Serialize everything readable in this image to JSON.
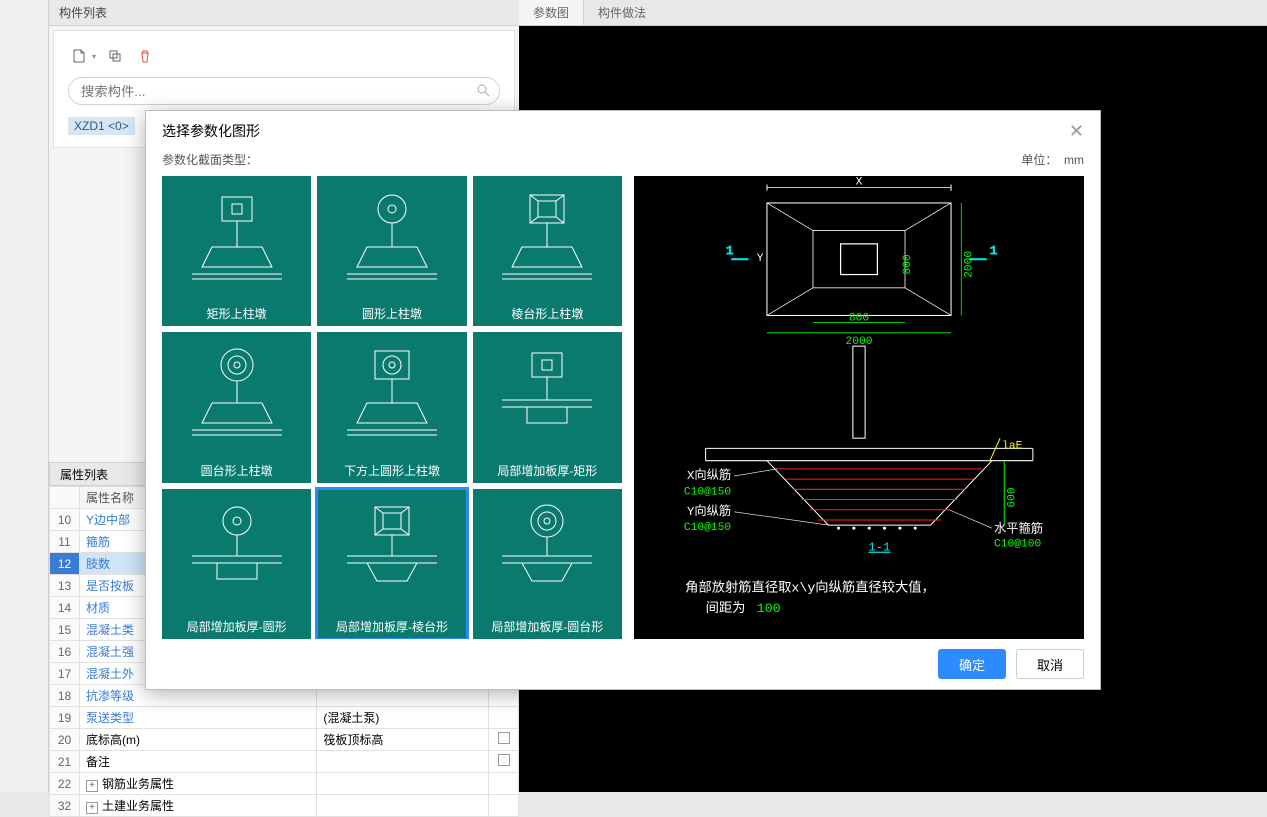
{
  "panels": {
    "component_list_title": "构件列表",
    "property_list_title": "属性列表",
    "param_tab": "参数图",
    "method_tab": "构件做法"
  },
  "search": {
    "placeholder": "搜索构件..."
  },
  "component_tag": "XZD1 <0>",
  "prop_header": {
    "name": "属性名称"
  },
  "prop_rows": [
    {
      "n": "10",
      "name": "Y边中部",
      "link": true
    },
    {
      "n": "11",
      "name": "箍筋",
      "link": true
    },
    {
      "n": "12",
      "name": "肢数",
      "link": true,
      "sel": true
    },
    {
      "n": "13",
      "name": "是否按板",
      "link": true
    },
    {
      "n": "14",
      "name": "材质",
      "link": true
    },
    {
      "n": "15",
      "name": "混凝土类",
      "link": true
    },
    {
      "n": "16",
      "name": "混凝土强",
      "link": true
    },
    {
      "n": "17",
      "name": "混凝土外",
      "link": true
    },
    {
      "n": "18",
      "name": "抗渗等级",
      "link": true
    },
    {
      "n": "19",
      "name": "泵送类型",
      "val": "(混凝土泵)",
      "link": true
    },
    {
      "n": "20",
      "name": "底标高(m)",
      "val": "筏板顶标高",
      "chk": true
    },
    {
      "n": "21",
      "name": "备注",
      "chk": true
    },
    {
      "n": "22",
      "name": "钢筋业务属性",
      "expand": "+"
    },
    {
      "n": "32",
      "name": "土建业务属性",
      "expand": "+"
    }
  ],
  "modal": {
    "title": "选择参数化图形",
    "subtitle": "参数化截面类型：",
    "unit_label": "单位：",
    "unit_value": "mm",
    "confirm": "确定",
    "cancel": "取消",
    "shapes": [
      "矩形上柱墩",
      "圆形上柱墩",
      "棱台形上柱墩",
      "圆台形上柱墩",
      "下方上圆形上柱墩",
      "局部增加板厚-矩形",
      "局部增加板厚-圆形",
      "局部增加板厚-棱台形",
      "局部增加板厚-圆台形"
    ],
    "selected_index": 7
  },
  "diagram": {
    "colors": {
      "bg": "#000000",
      "white": "#ffffff",
      "green": "#00ff00",
      "cyan": "#00e0e0",
      "yellow": "#ffff00",
      "red": "#ff2020",
      "grey": "#808080"
    },
    "plan": {
      "x_label": "X",
      "y_label": "Y",
      "dim_outer": "2000",
      "dim_inner": "800",
      "section_marks": "1"
    },
    "section": {
      "label_x": "X向纵筋",
      "val_x": "C10@150",
      "label_y": "Y向纵筋",
      "val_y": "C10@150",
      "label_h": "水平箍筋",
      "val_h": "C10@100",
      "dim_h": "600",
      "lae": "laE",
      "cut": "1-1"
    },
    "note1": "角部放射筋直径取x\\y向纵筋直径较大值，",
    "note2_prefix": "间距为",
    "note2_val": "100"
  }
}
